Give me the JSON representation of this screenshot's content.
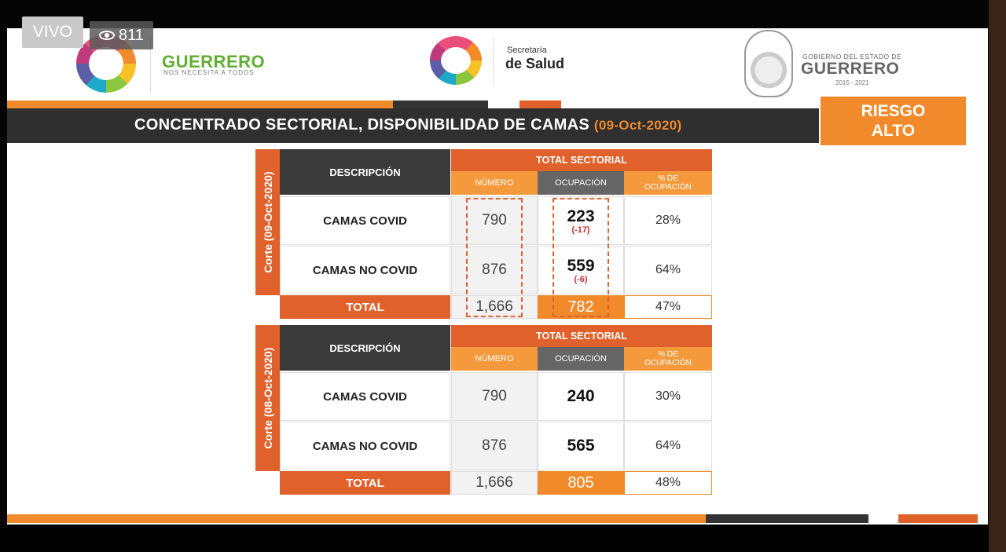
{
  "stream": {
    "live_label": "VIVO",
    "viewers": "811"
  },
  "header": {
    "logo_left_name": "GUERRERO",
    "logo_left_tagline": "NOS NECESITA A TODOS",
    "secretaria_line1": "Secretaría",
    "secretaria_line2": "de Salud",
    "gobierno_line1": "GOBIERNO DEL ESTADO DE",
    "gobierno_line2": "GUERRERO",
    "gobierno_years": "2015 - 2021"
  },
  "title": {
    "text": "CONCENTRADO SECTORIAL, DISPONIBILIDAD DE CAMAS",
    "date": "(09-Oct-2020)"
  },
  "risk": {
    "line1": "RIESGO",
    "line2": "ALTO"
  },
  "colors": {
    "orange": "#f08a2b",
    "dark_orange": "#e0612b",
    "dark": "#2f2f2f",
    "green": "#5fae32"
  },
  "tables": [
    {
      "corte_label": "Corte (09-Oct-2020)",
      "header_desc": "DESCRIPCIÓN",
      "header_total": "TOTAL SECTORIAL",
      "col_num": "NÚMERO",
      "col_ocu": "OCUPACIÓN",
      "col_pct": "% DE OCUPACIÓN",
      "rows": [
        {
          "label": "CAMAS COVID",
          "numero": "790",
          "ocupacion": "223",
          "delta": "(-17)",
          "pct": "28%"
        },
        {
          "label": "CAMAS NO COVID",
          "numero": "876",
          "ocupacion": "559",
          "delta": "(-6)",
          "pct": "64%"
        }
      ],
      "total": {
        "label": "TOTAL",
        "numero": "1,666",
        "ocupacion": "782",
        "pct": "47%"
      }
    },
    {
      "corte_label": "Corte (08-Oct-2020)",
      "header_desc": "DESCRIPCIÓN",
      "header_total": "TOTAL SECTORIAL",
      "col_num": "NÚMERO",
      "col_ocu": "OCUPACIÓN",
      "col_pct": "% DE OCUPACIÓN",
      "rows": [
        {
          "label": "CAMAS COVID",
          "numero": "790",
          "ocupacion": "240",
          "delta": "",
          "pct": "30%"
        },
        {
          "label": "CAMAS NO COVID",
          "numero": "876",
          "ocupacion": "565",
          "delta": "",
          "pct": "64%"
        }
      ],
      "total": {
        "label": "TOTAL",
        "numero": "1,666",
        "ocupacion": "805",
        "pct": "48%"
      }
    }
  ]
}
